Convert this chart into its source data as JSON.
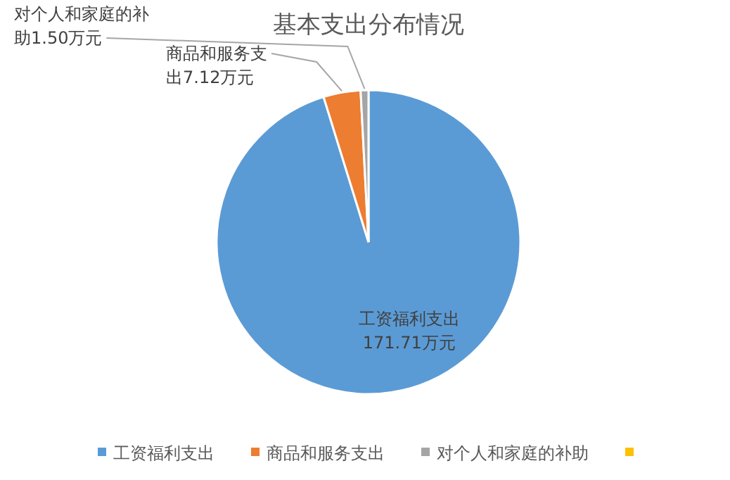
{
  "chart_data": {
    "type": "pie",
    "title": "基本支出分布情况",
    "categories": [
      "工资福利支出",
      "商品和服务支出",
      "对个人和家庭的补助",
      null
    ],
    "values": [
      171.71,
      7.12,
      1.5,
      0
    ],
    "colors": [
      "#5b9bd5",
      "#ed7d31",
      "#a5a5a5",
      "#ffc000"
    ],
    "value_labels": [
      "工资福利支出171.71万元",
      "商品和服务支出7.12万元",
      "对个人和家庭的补助1.50万元",
      null
    ],
    "legend": "bottom"
  }
}
